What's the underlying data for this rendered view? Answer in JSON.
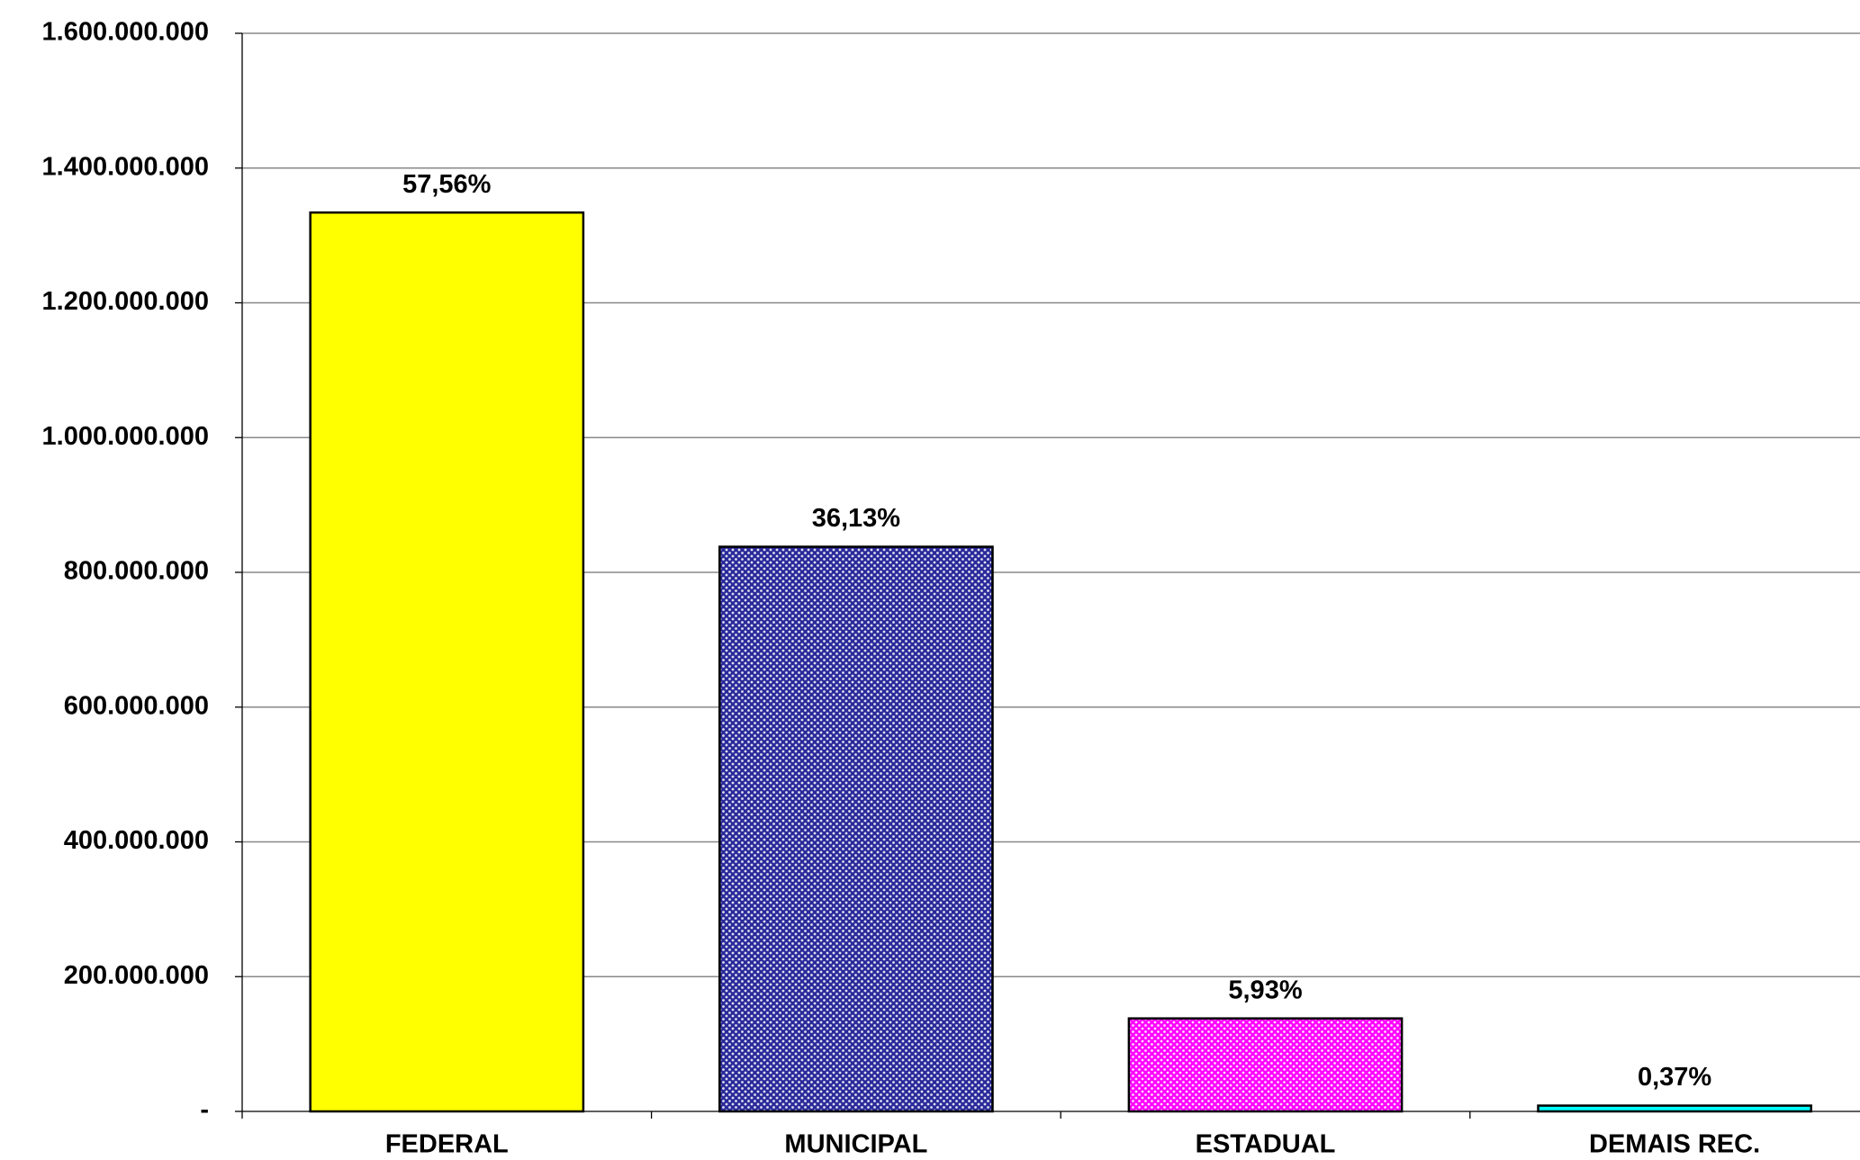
{
  "chart_data": {
    "type": "bar",
    "categories": [
      "FEDERAL",
      "MUNICIPAL",
      "ESTADUAL",
      "DEMAIS REC."
    ],
    "values": [
      1334000000,
      838000000,
      138000000,
      8600000
    ],
    "shares": [
      57.56,
      36.13,
      5.93,
      0.37
    ],
    "share_labels": [
      "57,56%",
      "36,13%",
      "5,93%",
      "0,37%"
    ],
    "colors": [
      "#ffff00",
      "#2a2a9a",
      "#ff00ff",
      "#00ffff"
    ],
    "patterns": [
      "solid",
      "dots",
      "dots",
      "solid"
    ],
    "ylim": [
      0,
      1600000000
    ],
    "yticks": [
      {
        "value": 0,
        "label": "-"
      },
      {
        "value": 200000000,
        "label": "200.000.000"
      },
      {
        "value": 400000000,
        "label": "400.000.000"
      },
      {
        "value": 600000000,
        "label": "600.000.000"
      },
      {
        "value": 800000000,
        "label": "800.000.000"
      },
      {
        "value": 1000000000,
        "label": "1.000.000.000"
      },
      {
        "value": 1200000000,
        "label": "1.200.000.000"
      },
      {
        "value": 1400000000,
        "label": "1.400.000.000"
      },
      {
        "value": 1600000000,
        "label": "1.600.000.000"
      }
    ],
    "grid": true
  }
}
